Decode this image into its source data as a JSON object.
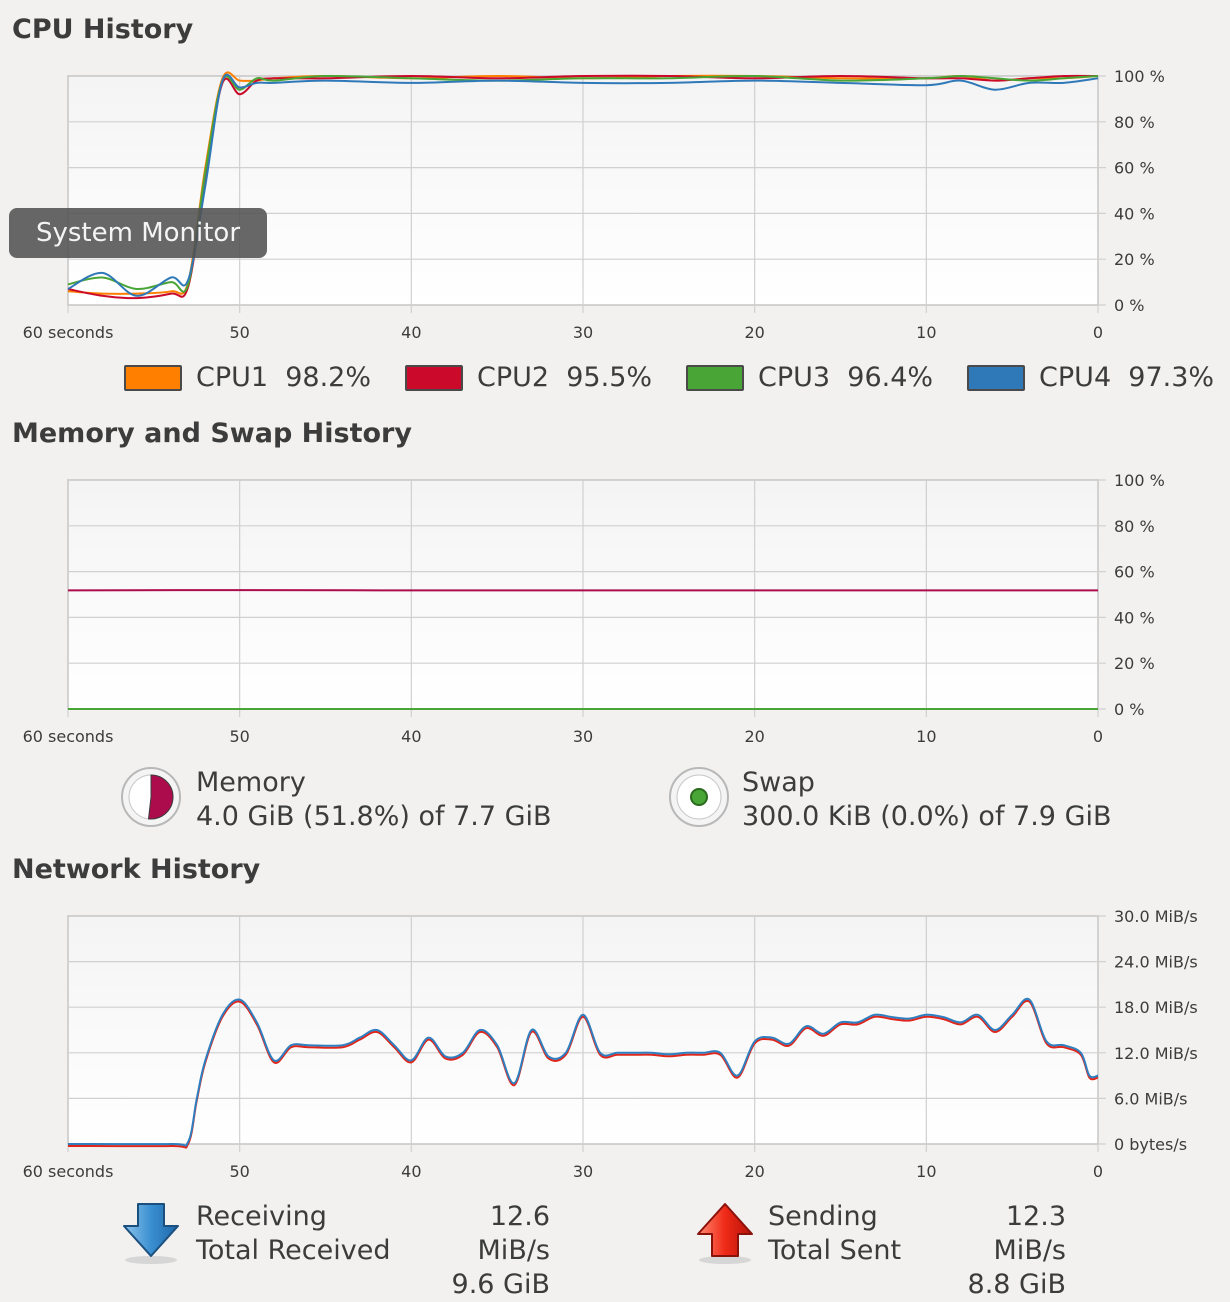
{
  "cpu": {
    "title": "CPU History",
    "y_ticks": [
      "100 %",
      "80 %",
      "60 %",
      "40 %",
      "20 %",
      "0 %"
    ],
    "x_ticks": [
      "60 seconds",
      "50",
      "40",
      "30",
      "20",
      "10",
      "0"
    ],
    "legend": [
      {
        "label": "CPU1",
        "value": "98.2%",
        "color": "#ff7f00"
      },
      {
        "label": "CPU2",
        "value": "95.5%",
        "color": "#cb0a2b"
      },
      {
        "label": "CPU3",
        "value": "96.4%",
        "color": "#49a535"
      },
      {
        "label": "CPU4",
        "value": "97.3%",
        "color": "#3079b9"
      }
    ]
  },
  "memory": {
    "title": "Memory and Swap History",
    "y_ticks": [
      "100 %",
      "80 %",
      "60 %",
      "40 %",
      "20 %",
      "0 %"
    ],
    "x_ticks": [
      "60 seconds",
      "50",
      "40",
      "30",
      "20",
      "10",
      "0"
    ],
    "memory_label": "Memory",
    "memory_value": "4.0 GiB (51.8%) of 7.7 GiB",
    "memory_color": "#ad0c4c",
    "swap_label": "Swap",
    "swap_value": "300.0 KiB (0.0%) of 7.9 GiB",
    "swap_color": "#49a535"
  },
  "network": {
    "title": "Network History",
    "y_ticks": [
      "30.0 MiB/s",
      "24.0 MiB/s",
      "18.0 MiB/s",
      "12.0 MiB/s",
      "6.0 MiB/s",
      "0 bytes/s"
    ],
    "x_ticks": [
      "60 seconds",
      "50",
      "40",
      "30",
      "20",
      "10",
      "0"
    ],
    "receiving_label": "Receiving",
    "receiving_value": "12.6 MiB/s",
    "total_received_label": "Total Received",
    "total_received_value": "9.6 GiB",
    "sending_label": "Sending",
    "sending_value": "12.3 MiB/s",
    "total_sent_label": "Total Sent",
    "total_sent_value": "8.8 GiB",
    "receiving_color": "#2f7fc0",
    "sending_color": "#e0261b"
  },
  "tooltip": "System Monitor",
  "chart_data": [
    {
      "type": "line",
      "title": "CPU History",
      "xlabel": "",
      "ylabel": "",
      "x": [
        60,
        58,
        56,
        54,
        53,
        52,
        51,
        50,
        49,
        48,
        45,
        40,
        35,
        30,
        25,
        20,
        15,
        10,
        8,
        6,
        4,
        2,
        0
      ],
      "xlim": [
        60,
        0
      ],
      "ylim": [
        0,
        100
      ],
      "series": [
        {
          "name": "CPU1",
          "values": [
            6,
            5,
            5,
            6,
            10,
            60,
            99,
            98,
            98,
            99,
            100,
            99,
            100,
            99,
            100,
            100,
            99,
            99,
            100,
            98,
            99,
            99,
            100
          ]
        },
        {
          "name": "CPU2",
          "values": [
            7,
            4,
            3,
            5,
            8,
            55,
            97,
            92,
            98,
            99,
            99,
            100,
            99,
            100,
            100,
            99,
            100,
            99,
            99,
            98,
            99,
            100,
            100
          ]
        },
        {
          "name": "CPU3",
          "values": [
            9,
            12,
            7,
            10,
            9,
            58,
            98,
            94,
            99,
            98,
            100,
            99,
            98,
            99,
            99,
            100,
            98,
            99,
            100,
            99,
            98,
            99,
            100
          ]
        },
        {
          "name": "CPU4",
          "values": [
            7,
            14,
            4,
            12,
            11,
            52,
            98,
            95,
            97,
            97,
            98,
            97,
            98,
            97,
            97,
            98,
            97,
            96,
            98,
            94,
            97,
            97,
            99
          ]
        }
      ]
    },
    {
      "type": "line",
      "title": "Memory and Swap History",
      "xlabel": "",
      "ylabel": "",
      "x": [
        60,
        50,
        40,
        30,
        20,
        10,
        0
      ],
      "xlim": [
        60,
        0
      ],
      "ylim": [
        0,
        100
      ],
      "series": [
        {
          "name": "Memory",
          "values": [
            51.8,
            51.9,
            51.8,
            51.8,
            51.8,
            51.8,
            51.8
          ]
        },
        {
          "name": "Swap",
          "values": [
            0,
            0,
            0,
            0,
            0,
            0,
            0
          ]
        }
      ]
    },
    {
      "type": "line",
      "title": "Network History",
      "xlabel": "",
      "ylabel": "",
      "x": [
        60,
        54,
        53,
        52.5,
        52,
        51,
        50,
        49,
        48,
        47,
        46,
        44,
        43,
        42,
        41,
        40,
        39,
        38,
        37,
        36,
        35,
        34,
        33,
        32,
        31,
        30,
        29,
        28,
        27,
        26,
        25,
        24,
        23,
        22,
        21,
        20,
        19,
        18,
        17,
        16,
        15,
        14,
        13,
        12,
        11,
        10,
        9,
        8,
        7,
        6,
        5,
        4,
        3,
        2,
        1,
        0.5,
        0
      ],
      "xlim": [
        60,
        0
      ],
      "ylim": [
        0,
        30
      ],
      "series": [
        {
          "name": "Receiving",
          "values": [
            0,
            0,
            0.3,
            6,
            11,
            17,
            19,
            16,
            11,
            13,
            13,
            13,
            14,
            15,
            13,
            11,
            14,
            11.5,
            12,
            15,
            13,
            8,
            15,
            11.5,
            12,
            17,
            12,
            12,
            12,
            12,
            11.8,
            12,
            12,
            12,
            9,
            13.5,
            14,
            13.2,
            15.5,
            14.5,
            16,
            16,
            17,
            16.7,
            16.5,
            17,
            16.7,
            16,
            17,
            15,
            17,
            19,
            13.5,
            13,
            12,
            9,
            9
          ]
        },
        {
          "name": "Sending",
          "values": [
            0,
            0,
            0.3,
            6,
            11,
            17,
            19,
            16,
            11,
            13,
            13,
            13,
            14,
            15,
            13,
            11,
            14,
            11.5,
            12,
            15,
            13,
            8,
            15,
            11.5,
            12,
            17,
            12,
            12,
            12,
            12,
            11.8,
            12,
            12,
            12,
            9,
            13.5,
            14,
            13.2,
            15.5,
            14.5,
            16,
            16,
            17,
            16.7,
            16.5,
            17,
            16.7,
            16,
            17,
            15,
            17,
            19,
            13.5,
            13,
            12,
            9,
            9
          ]
        }
      ]
    }
  ]
}
